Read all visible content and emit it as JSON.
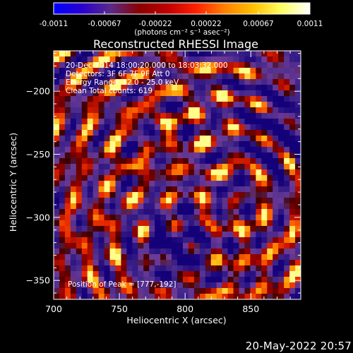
{
  "colorbar": {
    "ticks": [
      "-0.0011",
      "-0.00067",
      "-0.00022",
      "0.00022",
      "0.00067",
      "0.0011"
    ],
    "units": "(photons cm⁻² s⁻¹ asec⁻²)",
    "colors": [
      "#0000ff",
      "#2a00d0",
      "#5a2a8a",
      "#8a0000",
      "#c00000",
      "#ff2000",
      "#ff8000",
      "#ffc000",
      "#ffff60",
      "#ffffff"
    ]
  },
  "chart_data": {
    "type": "heatmap",
    "title": "Reconstructed RHESSI Image",
    "xlabel": "Heliocentric X (arcsec)",
    "ylabel": "Heliocentric Y (arcsec)",
    "xlim": [
      700,
      888
    ],
    "ylim": [
      -365,
      -168
    ],
    "xticks": [
      700,
      750,
      800,
      850
    ],
    "yticks": [
      -200,
      -250,
      -300,
      -350
    ],
    "value_range": [
      -0.0011,
      0.0011
    ],
    "peak_position": [
      777,
      -192
    ],
    "annotations": [
      "20-Dec-2014 18:00:20.000 to 18:03:32.000",
      "Detectors: 3F 6F 7F 9F Att 0",
      "Energy Range: 12.0 - 25.0 keV",
      "Clean     Total counts: 619"
    ],
    "peak_label": "Position of Peak = [777,-192]"
  },
  "footer": {
    "date": "20-May-2022 20:57"
  }
}
